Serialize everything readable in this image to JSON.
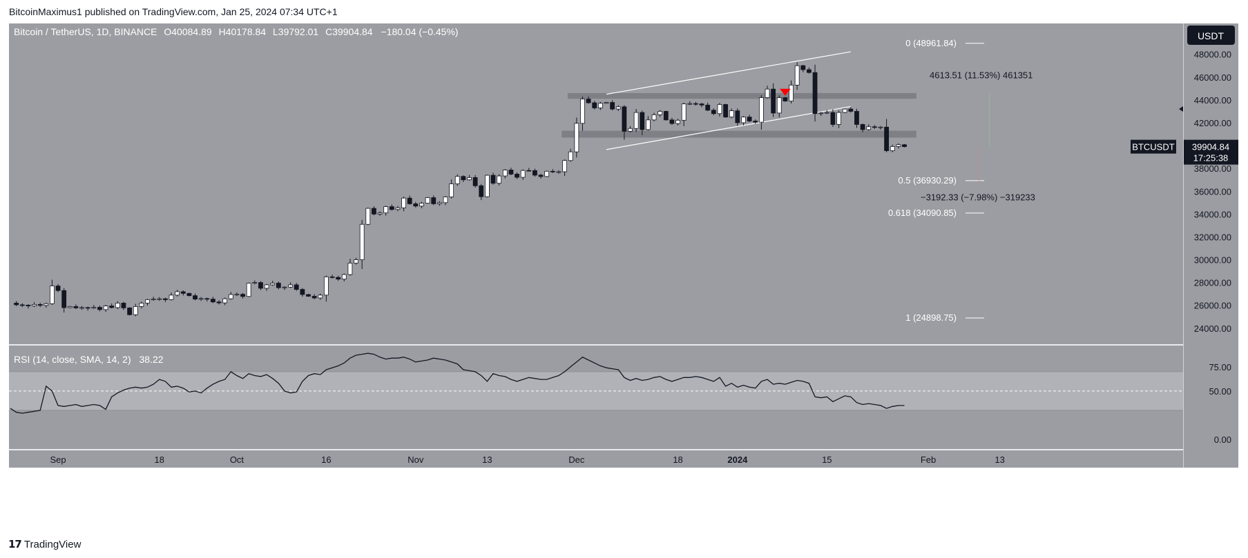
{
  "header": {
    "published": "BitcoinMaximus1 published on TradingView.com, Jan 25, 2024 07:34 UTC+1"
  },
  "footer": {
    "logo_mark": "17",
    "brand": "TradingView"
  },
  "colors": {
    "background": "#9b9da2",
    "rsi_band": "#b0b2b7",
    "candle_up": "#ffffff",
    "candle_down": "#131722",
    "arrow": "#ff0000",
    "price_tag": "#131722"
  },
  "legend": {
    "symbol": "Bitcoin / TetherUS, 1D, BINANCE",
    "o_label": "O",
    "o": "40084.89",
    "h_label": "H",
    "h": "40178.84",
    "l_label": "L",
    "l": "39792.01",
    "c_label": "C",
    "c": "39904.84",
    "change": "−180.04 (−0.45%)"
  },
  "currency_button": "USDT",
  "price_tag": {
    "symbol": "BTCUSDT",
    "price": "39904.84",
    "countdown": "17:25:38"
  },
  "chart_data": {
    "type": "candlestick",
    "title": "Bitcoin / TetherUS, 1D, BINANCE",
    "ylim": [
      22600,
      50700
    ],
    "y_ticks": [
      "48000.00",
      "46000.00",
      "44000.00",
      "42000.00",
      "40000.00",
      "38000.00",
      "36000.00",
      "34000.00",
      "32000.00",
      "30000.00",
      "28000.00",
      "26000.00",
      "24000.00"
    ],
    "y_tick_values": [
      48000,
      46000,
      44000,
      42000,
      40000,
      38000,
      36000,
      34000,
      32000,
      30000,
      28000,
      26000,
      24000
    ],
    "x_ticks": [
      "Sep",
      "18",
      "Oct",
      "16",
      "Nov",
      "13",
      "Dec",
      "18",
      "2024",
      "15",
      "Feb",
      "13"
    ],
    "x_tick_days": [
      8,
      25,
      38,
      53,
      68,
      80,
      95,
      112,
      122,
      137,
      154,
      166
    ],
    "first_day": "2023-08-25",
    "closes": [
      26200,
      26050,
      26020,
      25950,
      26080,
      26000,
      26150,
      27700,
      27300,
      25800,
      25900,
      25780,
      25810,
      25760,
      25830,
      25630,
      25950,
      25810,
      26200,
      25780,
      25180,
      25900,
      26200,
      26500,
      26550,
      26580,
      26500,
      26900,
      27200,
      27050,
      26850,
      26550,
      26600,
      26550,
      26300,
      26220,
      26580,
      26950,
      26970,
      26780,
      27950,
      28000,
      27500,
      27800,
      27950,
      27550,
      27600,
      27800,
      27400,
      26950,
      26800,
      26650,
      26900,
      28500,
      28450,
      28300,
      28700,
      29700,
      30000,
      33100,
      34500,
      34000,
      34100,
      34650,
      34400,
      34550,
      35400,
      34900,
      34700,
      34950,
      35440,
      34900,
      35000,
      35500,
      36650,
      37300,
      37000,
      37200,
      36480,
      35520,
      37400,
      36700,
      37340,
      37860,
      37500,
      37220,
      37820,
      37810,
      37410,
      37290,
      37750,
      37700,
      37710,
      38690,
      39450,
      41950,
      44080,
      43750,
      43300,
      43710,
      43780,
      43200,
      43400,
      41250,
      41500,
      42900,
      41400,
      42250,
      42700,
      43000,
      42250,
      41930,
      42220,
      43650,
      43680,
      43650,
      43550,
      43100,
      42800,
      43600,
      42500,
      43050,
      42000,
      42500,
      42150,
      42050,
      44200,
      44950,
      42850,
      44200,
      43900,
      45300,
      47000,
      46650,
      46400,
      42800,
      42850,
      42900,
      41850,
      42900,
      43200,
      43000,
      41850,
      41400,
      41650,
      41600,
      41620,
      39550,
      39920,
      40080,
      39905
    ],
    "current_price": 39904.84,
    "fib_levels": [
      {
        "label": "0 (48961.84)",
        "value": 48961.84
      },
      {
        "label": "0.5 (36930.29)",
        "value": 36930.29
      },
      {
        "label": "0.618 (34090.85)",
        "value": 34090.85
      },
      {
        "label": "1 (24898.75)",
        "value": 24898.75
      }
    ],
    "measure_up": "4613.51 (11.53%) 461351",
    "measure_down": "−3192.33 (−7.98%) −319233",
    "resistance_zone": [
      44100,
      44600
    ],
    "support_zone": [
      40700,
      41300
    ],
    "channel": [
      {
        "day": 100,
        "lower": 39650,
        "upper": 44500
      },
      {
        "day": 141,
        "lower": 43420,
        "upper": 48220
      }
    ],
    "rsi": {
      "label": "RSI (14, close, SMA, 14, 2)",
      "value": "38.22",
      "ylim": [
        -10,
        97
      ],
      "ticks": [
        "75.00",
        "50.00",
        "0.00"
      ],
      "tick_values": [
        75,
        50,
        0
      ],
      "band": [
        30,
        70
      ],
      "values": [
        32,
        28,
        27,
        28,
        29,
        30,
        55,
        50,
        35,
        34,
        35,
        36,
        34,
        35,
        36,
        35,
        31,
        44,
        48,
        51,
        53,
        54,
        53,
        54,
        57,
        62,
        60,
        54,
        55,
        53,
        49,
        50,
        48,
        53,
        57,
        60,
        62,
        70,
        66,
        63,
        68,
        66,
        65,
        67,
        63,
        58,
        50,
        48,
        49,
        60,
        66,
        68,
        67,
        72,
        74,
        76,
        79,
        84,
        87,
        88,
        89,
        88,
        85,
        83,
        84,
        84,
        85,
        83,
        80,
        81,
        82,
        84,
        83,
        82,
        80,
        78,
        72,
        71,
        70,
        66,
        60,
        68,
        66,
        65,
        62,
        60,
        62,
        64,
        63,
        62,
        62,
        64,
        66,
        70,
        75,
        80,
        85,
        82,
        79,
        76,
        74,
        73,
        72,
        64,
        61,
        63,
        61,
        62,
        64,
        65,
        62,
        60,
        62,
        64,
        64,
        65,
        64,
        62,
        60,
        64,
        55,
        58,
        54,
        56,
        54,
        53,
        60,
        62,
        57,
        58,
        57,
        59,
        61,
        60,
        58,
        44,
        43,
        44,
        39,
        42,
        45,
        44,
        38,
        36,
        37,
        36,
        35,
        32,
        34,
        35,
        35
      ]
    }
  }
}
